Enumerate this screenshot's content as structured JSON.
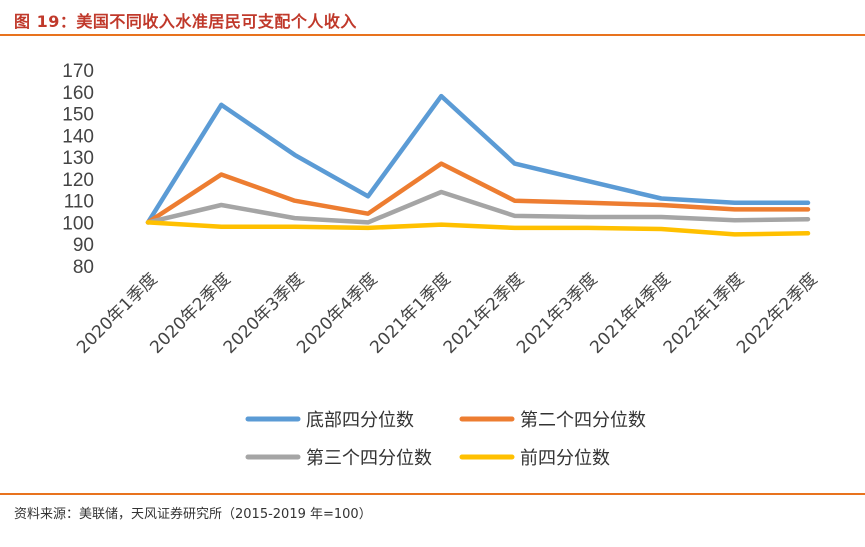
{
  "figure": {
    "title": "图 19：美国不同收入水准居民可支配个人收入",
    "source": "资料来源：美联储，天风证券研究所（2015-2019 年=100）"
  },
  "chart_data": {
    "type": "line",
    "title": "图 19：美国不同收入水准居民可支配个人收入",
    "xlabel": "",
    "ylabel": "",
    "ylim": [
      80,
      170
    ],
    "yticks": [
      80,
      90,
      100,
      110,
      120,
      130,
      140,
      150,
      160,
      170
    ],
    "grid": false,
    "legend_position": "bottom",
    "categories": [
      "2020年1季度",
      "2020年2季度",
      "2020年3季度",
      "2020年4季度",
      "2021年1季度",
      "2021年2季度",
      "2021年3季度",
      "2021年4季度",
      "2022年1季度",
      "2022年2季度"
    ],
    "series": [
      {
        "name": "底部四分位数",
        "color": "#5b9bd5",
        "values": [
          100,
          154,
          131,
          112,
          158,
          127,
          119,
          111,
          109,
          109
        ]
      },
      {
        "name": "第二个四分位数",
        "color": "#ed7d31",
        "values": [
          100,
          122,
          110,
          104,
          127,
          110,
          109,
          108,
          106,
          106
        ]
      },
      {
        "name": "第三个四分位数",
        "color": "#a5a5a5",
        "values": [
          100,
          108,
          102,
          100,
          114,
          103,
          102.5,
          102.5,
          101,
          101.5
        ]
      },
      {
        "name": "前四分位数",
        "color": "#ffc000",
        "values": [
          100,
          98,
          98,
          97.5,
          99,
          97.5,
          97.5,
          97,
          94.5,
          95
        ]
      }
    ]
  }
}
